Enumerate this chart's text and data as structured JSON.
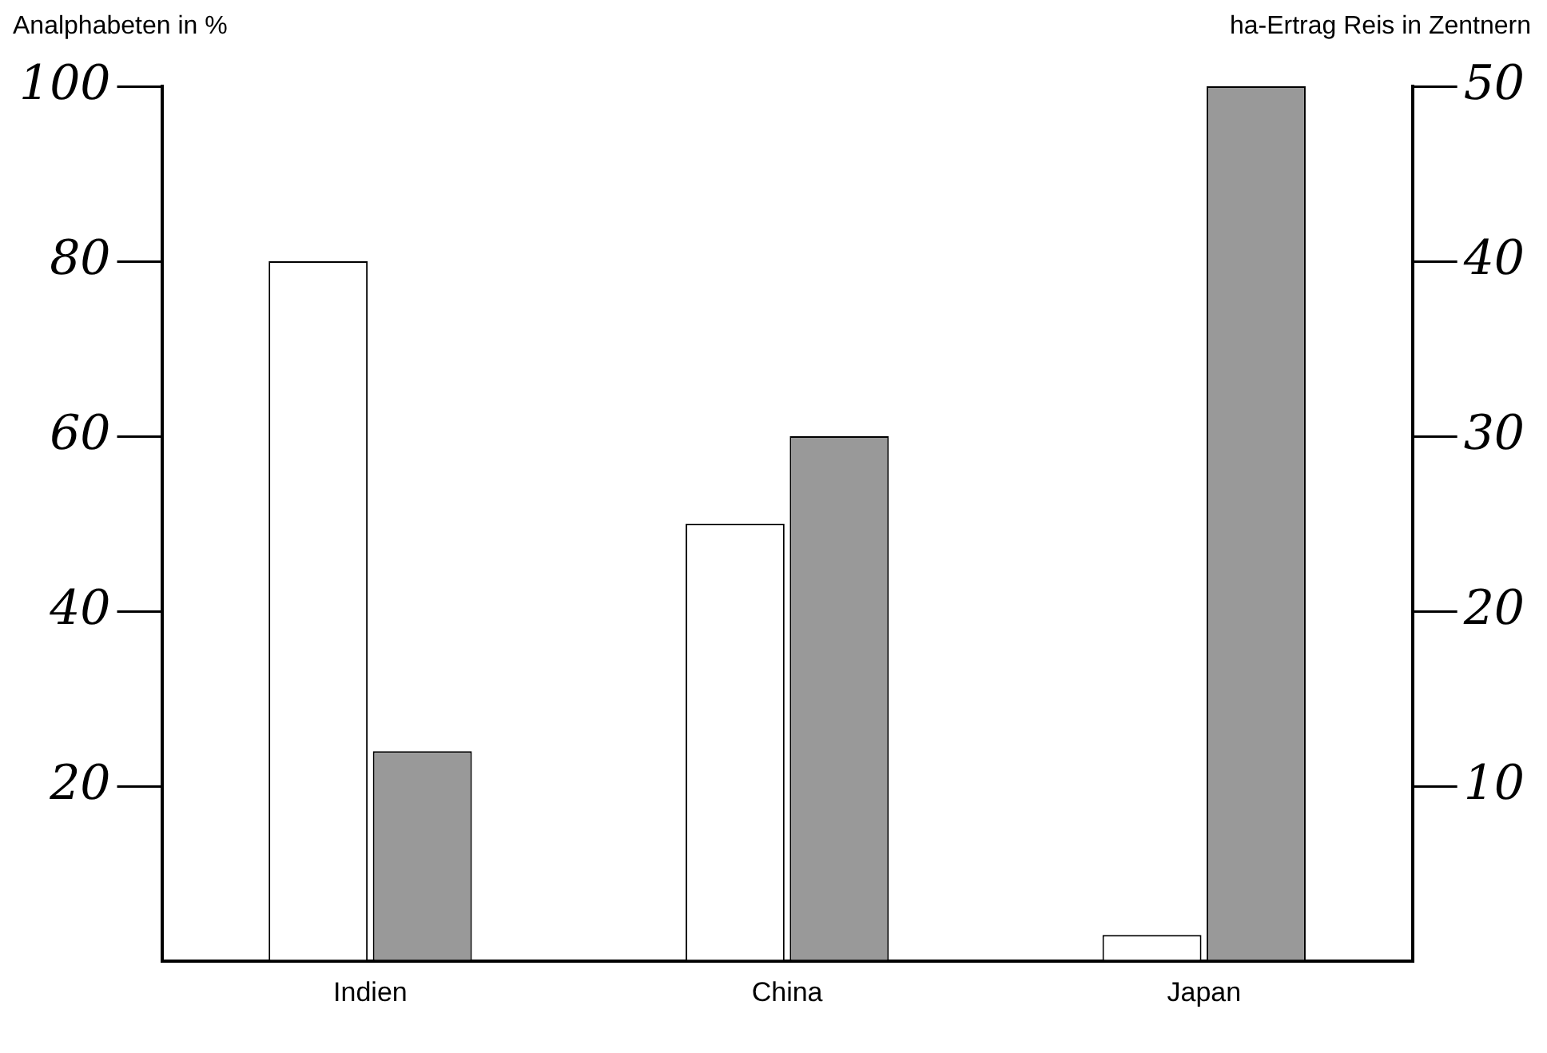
{
  "chart_data": {
    "type": "bar",
    "ylabel": "Analphabeten in %",
    "y2label": "ha-Ertrag Reis in Zentnern",
    "categories": [
      "Indien",
      "China",
      "Japan"
    ],
    "series": [
      {
        "color": "#ffffff",
        "values": [
          80,
          50,
          3
        ]
      },
      {
        "color": "#999999",
        "values": [
          12,
          30,
          50
        ],
        "axis": "y2"
      }
    ],
    "ylim": [
      0,
      100
    ],
    "yticks": [
      20,
      40,
      60,
      80,
      100
    ],
    "y2lim": [
      0,
      50
    ],
    "y2ticks": [
      10,
      20,
      30,
      40,
      50
    ],
    "grid": false,
    "legend": false
  }
}
